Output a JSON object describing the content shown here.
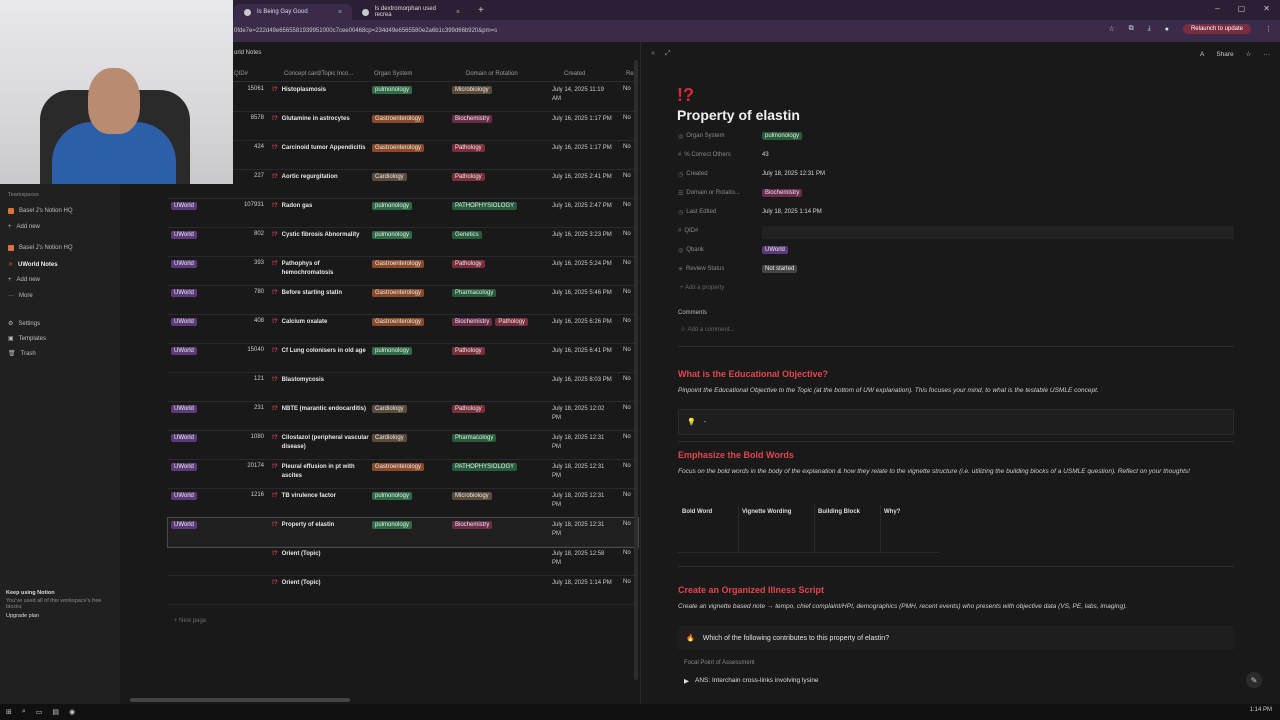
{
  "browser": {
    "tabs": [
      {
        "label": "Is Being Gay Good"
      },
      {
        "label": "Is dextromorphan used recrea"
      }
    ],
    "url": "0fde7e=222d49e6565581939951000c7cee00468cp=234d49e6565580e2a6b1c399d66b920&pm=s",
    "relaunch_label": "Relaunch to update"
  },
  "sidebar": {
    "teamspaces_label": "Teamspaces",
    "items": [
      {
        "label": "Basel J's Notion HQ"
      },
      {
        "label": "Add new"
      },
      {
        "label": "Basel J's Notion HQ"
      },
      {
        "label": "UWorld Notes"
      },
      {
        "label": "Add new"
      },
      {
        "label": "More"
      }
    ],
    "settings": "Settings",
    "templates": "Templates",
    "trash": "Trash",
    "keep_title": "Keep using Notion",
    "keep_sub": "You've used all of this workspace's free blocks",
    "upgrade": "Upgrade plan"
  },
  "breadcrumb": "orld Notes",
  "table": {
    "headers": {
      "qid": "QID#",
      "title": "Concept card/Topic Inco...",
      "organ": "Organ System",
      "domain": "Domain or Rotation",
      "created": "Created",
      "re": "Re"
    },
    "rows": [
      {
        "qbank": "",
        "qid": "15061",
        "title": "Histoplasmosis",
        "organ": "pulmonology",
        "domain": [
          "Microbiology"
        ],
        "created": "July 14, 2025 11:19 AM",
        "status": "No"
      },
      {
        "qbank": "",
        "qid": "8578",
        "title": "Glutamine in astrocytes",
        "organ": "Gastroenterology",
        "domain": [
          "Biochemistry"
        ],
        "created": "July 16, 2025 1:17 PM",
        "status": "No"
      },
      {
        "qbank": "",
        "qid": "424",
        "title": "Carcinoid tumor Appendicitis",
        "organ": "Gastroenterology",
        "domain": [
          "Pathology"
        ],
        "created": "July 16, 2025 1:17 PM",
        "status": "No"
      },
      {
        "qbank": "UWorld",
        "qid": "227",
        "title": "Aortic regurgitation",
        "organ": "Cardiology",
        "domain": [
          "Pathology"
        ],
        "created": "July 16, 2025 2:41 PM",
        "status": "No"
      },
      {
        "qbank": "UWorld",
        "qid": "107931",
        "title": "Radon gas",
        "organ": "pulmonology",
        "domain": [
          "PATHOPHYSIOLOGY"
        ],
        "created": "July 16, 2025 2:47 PM",
        "status": "No"
      },
      {
        "qbank": "UWorld",
        "qid": "802",
        "title": "Cystic fibrosis Abnormality",
        "organ": "pulmonology",
        "domain": [
          "Genetics"
        ],
        "created": "July 16, 2025 3:23 PM",
        "status": "No"
      },
      {
        "qbank": "UWorld",
        "qid": "393",
        "title": "Pathophys of hemochromatosis",
        "organ": "Gastroenterology",
        "domain": [
          "Pathology"
        ],
        "created": "July 16, 2025 5:24 PM",
        "status": "No"
      },
      {
        "qbank": "UWorld",
        "qid": "780",
        "title": "Before starting statin",
        "organ": "Gastroenterology",
        "domain": [
          "Pharmacology"
        ],
        "created": "July 16, 2025 5:46 PM",
        "status": "No"
      },
      {
        "qbank": "UWorld",
        "qid": "408",
        "title": "Calcium oxalate",
        "organ": "Gastroenterology",
        "domain": [
          "Biochemistry",
          "Pathology"
        ],
        "created": "July 16, 2025 6:26 PM",
        "status": "No"
      },
      {
        "qbank": "UWorld",
        "qid": "15040",
        "title": "Cf Lung colonisers in old age",
        "organ": "pulmonology",
        "domain": [
          "Pathology"
        ],
        "created": "July 16, 2025 6:41 PM",
        "status": "No"
      },
      {
        "qbank": "",
        "qid": "121",
        "title": "Blastomycosis",
        "organ": "",
        "domain": [],
        "created": "July 16, 2025 8:03 PM",
        "status": "No"
      },
      {
        "qbank": "UWorld",
        "qid": "231",
        "title": "NBTE (marantic endocarditis)",
        "organ": "Cardiology",
        "domain": [
          "Pathology"
        ],
        "created": "July 18, 2025 12:02 PM",
        "status": "No"
      },
      {
        "qbank": "UWorld",
        "qid": "1080",
        "title": "Cilostazol (peripheral vascular disease)",
        "organ": "Cardiology",
        "domain": [
          "Pharmacology"
        ],
        "created": "July 18, 2025 12:31 PM",
        "status": "No"
      },
      {
        "qbank": "UWorld",
        "qid": "20174",
        "title": "Pleural effusion in pt with ascites",
        "organ": "Gastroenterology",
        "domain": [
          "PATHOPHYSIOLOGY"
        ],
        "created": "July 18, 2025 12:31 PM",
        "status": "No"
      },
      {
        "qbank": "UWorld",
        "qid": "1216",
        "title": "TB virulence factor",
        "organ": "pulmonology",
        "domain": [
          "Microbiology"
        ],
        "created": "July 18, 2025 12:31 PM",
        "status": "No"
      },
      {
        "qbank": "UWorld",
        "qid": "",
        "title": "Property of elastin",
        "organ": "pulmonology",
        "domain": [
          "Biochemistry"
        ],
        "created": "July 18, 2025 12:31 PM",
        "status": "No"
      },
      {
        "qbank": "",
        "qid": "",
        "title": "Orient (Topic)",
        "organ": "",
        "domain": [],
        "created": "July 18, 2025 12:58 PM",
        "status": "No"
      },
      {
        "qbank": "",
        "qid": "",
        "title": "Orient (Topic)",
        "organ": "",
        "domain": [],
        "created": "July 18, 2025 1:14 PM",
        "status": "No"
      }
    ],
    "new_page": "New page"
  },
  "detail": {
    "share": "Share",
    "icon": "!?",
    "title": "Property of elastin",
    "props": [
      {
        "key": "Organ System",
        "value": "pulmonology",
        "tag": "darkgreen"
      },
      {
        "key": "% Correct Others",
        "value": "43",
        "tag": ""
      },
      {
        "key": "Created",
        "value": "July 18, 2025 12:31 PM",
        "tag": ""
      },
      {
        "key": "Domain or Rotatio...",
        "value": "Biochemistry",
        "tag": "pink"
      },
      {
        "key": "Last Edited",
        "value": "July 18, 2025 1:14 PM",
        "tag": ""
      },
      {
        "key": "QID#",
        "value": "",
        "tag": ""
      },
      {
        "key": "Qbank",
        "value": "UWorld",
        "tag": "purple"
      },
      {
        "key": "Review Status",
        "value": "Not started",
        "tag": "gray"
      }
    ],
    "add_property": "Add a property",
    "comments": "Comments",
    "add_comment": "Add a comment...",
    "sec1_title": "What is the Educational Objective?",
    "sec1_desc": "Pinpoint the Educational Objective to the Topic (at the bottom of UW explanation). This focuses your mind, to what is the testable USMLE concept.",
    "callout_text": "-",
    "sec2_title": "Emphasize the Bold Words",
    "sec2_desc": "Focus on the bold words in the body of the explanation & how they relate to the vignette structure (i.e. utilizing the building blocks of a USMLE question). Reflect on your thoughts!",
    "bold_table_headers": [
      "Bold Word",
      "Vignette Wording",
      "Building Block",
      "Why?"
    ],
    "sec3_title": "Create an Organized Illness Script",
    "sec3_desc": "Create an vignette based note → tempo, chief complaint/HPI, demographics (PMH, recent events) who presents with objective data (VS, PE, labs, imaging).",
    "question": "Which of the following contributes to this property of elastin?",
    "focal": "Focal Point of Assessment",
    "answer": "ANS: Interchain cross-links involving lysine"
  },
  "taskbar": {
    "time": "1:14 PM"
  }
}
